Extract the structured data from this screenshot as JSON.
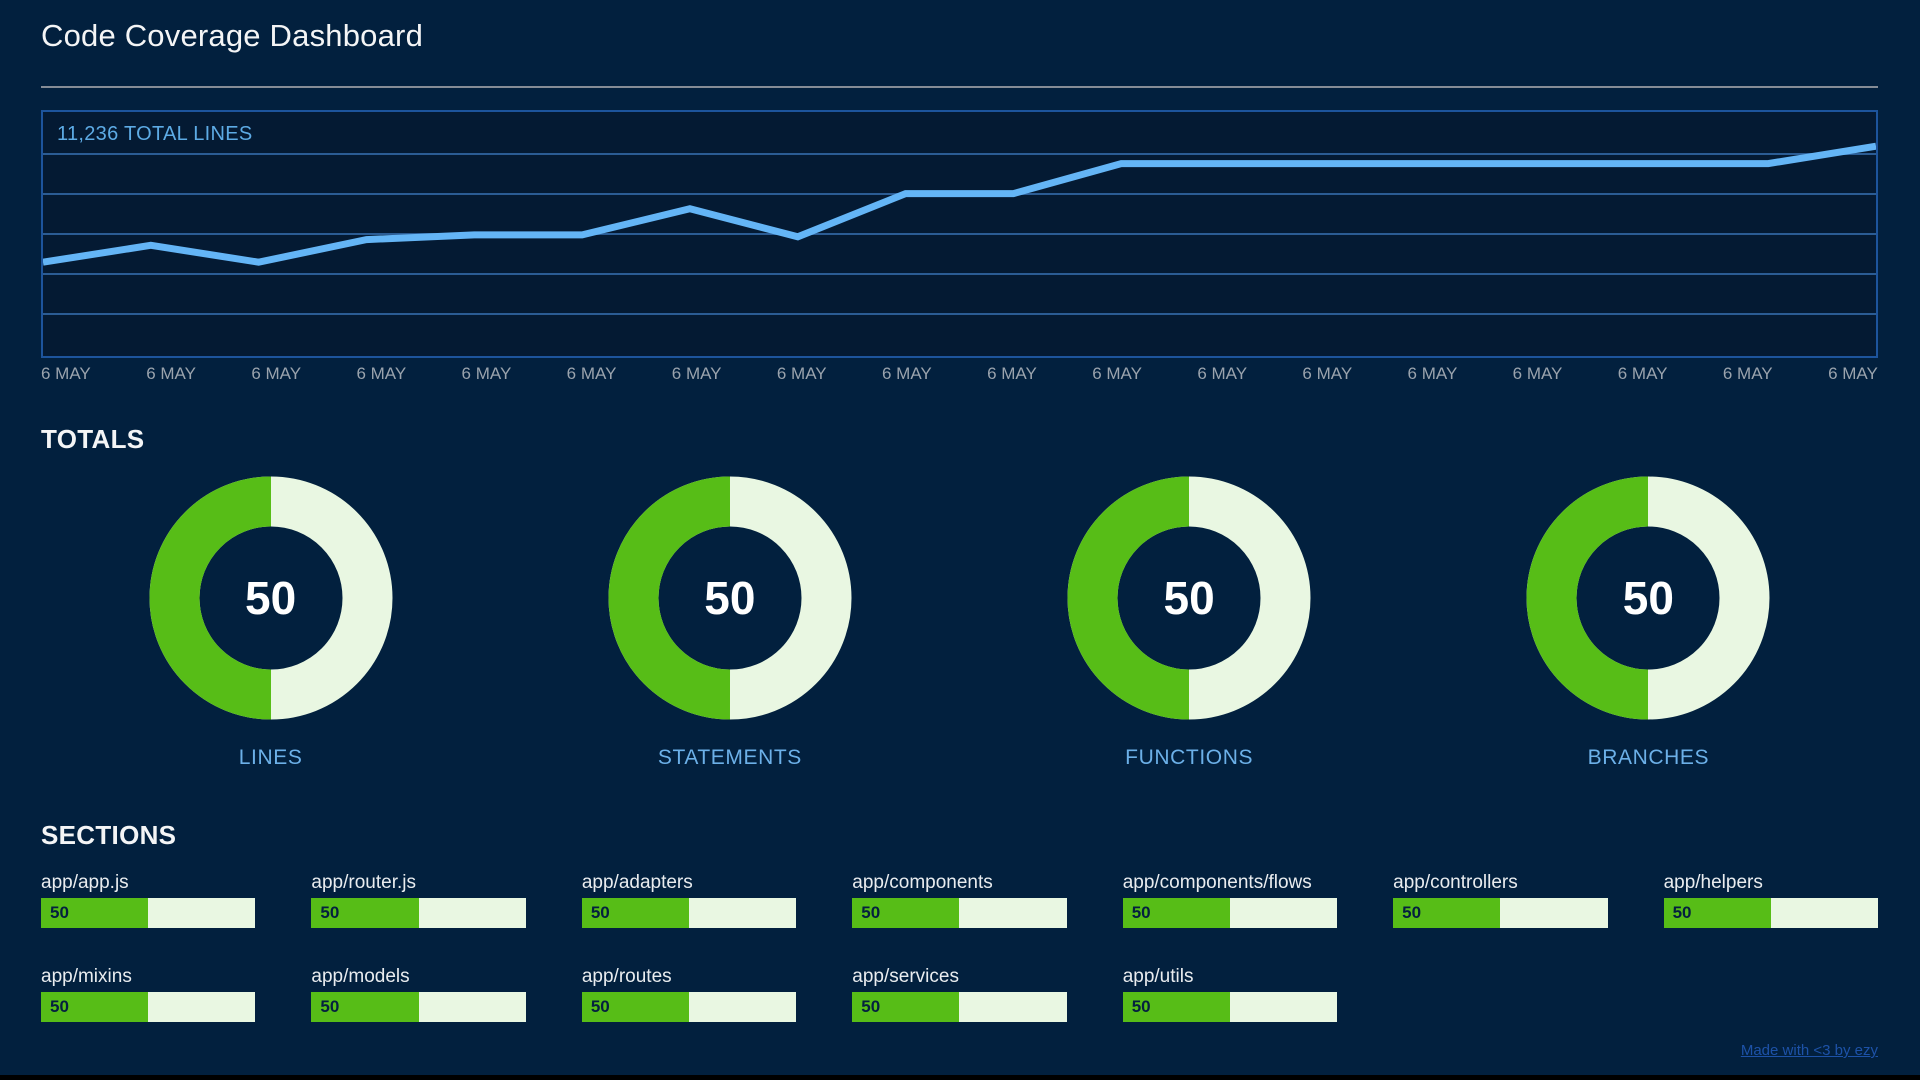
{
  "header": {
    "title": "Code Coverage Dashboard"
  },
  "line_chart": {
    "label": "11,236 TOTAL LINES"
  },
  "totals": {
    "heading": "TOTALS"
  },
  "sections": {
    "heading": "SECTIONS"
  },
  "footer": {
    "link_text": "Made with <3 by ezy"
  },
  "colors": {
    "page_bg": "#02203e",
    "chart_bg": "#041a33",
    "chart_border": "#1d549c",
    "chart_grid": "#2b5c94",
    "line": "#64b5f6",
    "chart_label_text": "#5dabe5",
    "axis_label_text": "#9aa3ad",
    "heading_text": "#f4f5f6",
    "donut_green": "#57bd17",
    "donut_track": "#e9f7e2",
    "donut_value_text": "#ffffff",
    "donut_label_text": "#6cb0e8",
    "section_label_text": "#e9ecef",
    "bar_green": "#57bd17",
    "bar_track": "#e9f7e2",
    "bar_value_text": "#04203f",
    "divider": "#858c96",
    "footer_link": "#1d52a8"
  },
  "chart_data": [
    {
      "type": "line",
      "title": "11,236 TOTAL LINES",
      "x": [
        "6 MAY",
        "6 MAY",
        "6 MAY",
        "6 MAY",
        "6 MAY",
        "6 MAY",
        "6 MAY",
        "6 MAY",
        "6 MAY",
        "6 MAY",
        "6 MAY",
        "6 MAY",
        "6 MAY",
        "6 MAY",
        "6 MAY",
        "6 MAY",
        "6 MAY",
        "6 MAY"
      ],
      "series": [
        {
          "name": "total lines",
          "values": [
            10000,
            10180,
            10000,
            10240,
            10290,
            10290,
            10570,
            10270,
            10730,
            10730,
            11050,
            11050,
            11050,
            11050,
            11050,
            11050,
            11050,
            11236
          ]
        }
      ],
      "ylim": [
        9000,
        11600
      ],
      "grid": "horizontal-only",
      "gridline_count": 5,
      "legend": "none",
      "line_color": "#64b5f6"
    },
    {
      "type": "pie",
      "subtype": "donut-gauge",
      "title": "TOTALS",
      "max": 100,
      "items": [
        {
          "label": "LINES",
          "value": 50
        },
        {
          "label": "STATEMENTS",
          "value": 50
        },
        {
          "label": "FUNCTIONS",
          "value": 50
        },
        {
          "label": "BRANCHES",
          "value": 50
        }
      ]
    },
    {
      "type": "bar",
      "subtype": "progress",
      "title": "SECTIONS",
      "max": 100,
      "categories": [
        "app/app.js",
        "app/router.js",
        "app/adapters",
        "app/components",
        "app/components/flows",
        "app/controllers",
        "app/helpers",
        "app/mixins",
        "app/models",
        "app/routes",
        "app/services",
        "app/utils"
      ],
      "values": [
        50,
        50,
        50,
        50,
        50,
        50,
        50,
        50,
        50,
        50,
        50,
        50
      ]
    }
  ]
}
